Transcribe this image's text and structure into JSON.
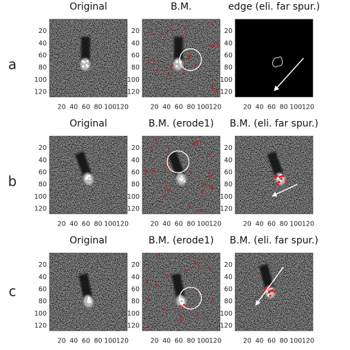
{
  "rows": [
    {
      "label": "a",
      "panels": [
        {
          "title": "Original"
        },
        {
          "title": "B.M."
        },
        {
          "title": "edge (eli. far spur.)"
        }
      ]
    },
    {
      "label": "b",
      "panels": [
        {
          "title": "Original"
        },
        {
          "title": "B.M. (erode1)"
        },
        {
          "title": "B.M. (eli. far spur.)"
        }
      ]
    },
    {
      "label": "c",
      "panels": [
        {
          "title": "Original"
        },
        {
          "title": "B.M. (erode1)"
        },
        {
          "title": "B.M. (eli. far spur.)"
        }
      ]
    }
  ],
  "axis_ticks": [
    20,
    40,
    60,
    80,
    100,
    120
  ]
}
